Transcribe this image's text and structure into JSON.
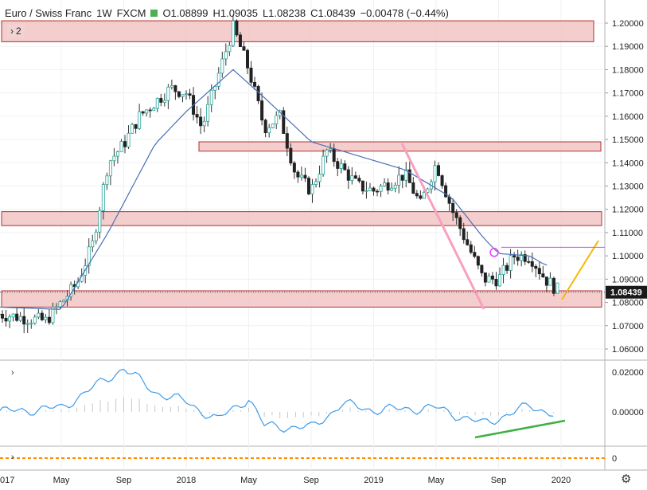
{
  "legend": {
    "symbol": "Euro / Swiss Franc",
    "interval": "1W",
    "exchange": "FXCM",
    "open": "O1.08899",
    "high": "H1.09035",
    "low": "L1.08238",
    "close": "C1.08439",
    "change": "−0.00478 (−0.44%)",
    "status_color": "#4caf50"
  },
  "badge_label": "2",
  "price_axis_labels": [
    "1.20000",
    "1.19000",
    "1.18000",
    "1.17000",
    "1.16000",
    "1.15000",
    "1.14000",
    "1.13000",
    "1.12000",
    "1.11000",
    "1.10000",
    "1.09000",
    "1.08000",
    "1.07000",
    "1.06000"
  ],
  "last_price_label": "1.08439",
  "osc_axis_labels": [
    "0.02000",
    "0.00000"
  ],
  "pane3_axis_label": "0",
  "time_labels": [
    "017",
    "May",
    "Sep",
    "2018",
    "May",
    "Sep",
    "2019",
    "May",
    "Sep",
    "2020"
  ],
  "colors": {
    "up": "#26a69a",
    "down": "#222222",
    "ma": "#4a6fb5",
    "zone_fill": "#f2c4c4",
    "zone_stroke": "#b03030",
    "trend_pink": "#f8a0c0",
    "yellow": "#f5b800",
    "magenta": "#e040fb",
    "osc": "#3d9be9",
    "green": "#3cb043",
    "orange": "#ff8c00"
  },
  "chart_data": {
    "type": "candlestick",
    "title": "Euro / Swiss Franc",
    "interval": "1W",
    "ylim": [
      1.056,
      1.203
    ],
    "x_range": [
      "2017-01",
      "2020-01"
    ],
    "keypoints_close": [
      {
        "date": "2017-01",
        "close": 1.075
      },
      {
        "date": "2017-04",
        "close": 1.072
      },
      {
        "date": "2017-06",
        "close": 1.088
      },
      {
        "date": "2017-07",
        "close": 1.105
      },
      {
        "date": "2017-08",
        "close": 1.14
      },
      {
        "date": "2017-09",
        "close": 1.148
      },
      {
        "date": "2017-10",
        "close": 1.16
      },
      {
        "date": "2017-12",
        "close": 1.172
      },
      {
        "date": "2018-01",
        "close": 1.17
      },
      {
        "date": "2018-02",
        "close": 1.155
      },
      {
        "date": "2018-04",
        "close": 1.198
      },
      {
        "date": "2018-05",
        "close": 1.18
      },
      {
        "date": "2018-06",
        "close": 1.155
      },
      {
        "date": "2018-07",
        "close": 1.16
      },
      {
        "date": "2018-08",
        "close": 1.135
      },
      {
        "date": "2018-09",
        "close": 1.128
      },
      {
        "date": "2018-10",
        "close": 1.145
      },
      {
        "date": "2018-12",
        "close": 1.13
      },
      {
        "date": "2019-01",
        "close": 1.128
      },
      {
        "date": "2019-03",
        "close": 1.135
      },
      {
        "date": "2019-04",
        "close": 1.122
      },
      {
        "date": "2019-05",
        "close": 1.14
      },
      {
        "date": "2019-06",
        "close": 1.12
      },
      {
        "date": "2019-07",
        "close": 1.105
      },
      {
        "date": "2019-08",
        "close": 1.09
      },
      {
        "date": "2019-09",
        "close": 1.09
      },
      {
        "date": "2019-10",
        "close": 1.1
      },
      {
        "date": "2019-11",
        "close": 1.1
      },
      {
        "date": "2019-12",
        "close": 1.09
      },
      {
        "date": "2020-01",
        "close": 1.084
      }
    ],
    "moving_average": [
      {
        "date": "2017-01",
        "value": 1.078
      },
      {
        "date": "2017-05",
        "value": 1.077
      },
      {
        "date": "2017-08",
        "value": 1.11
      },
      {
        "date": "2017-11",
        "value": 1.148
      },
      {
        "date": "2018-01",
        "value": 1.162
      },
      {
        "date": "2018-04",
        "value": 1.18
      },
      {
        "date": "2018-06",
        "value": 1.168
      },
      {
        "date": "2018-09",
        "value": 1.149
      },
      {
        "date": "2018-12",
        "value": 1.143
      },
      {
        "date": "2019-03",
        "value": 1.137
      },
      {
        "date": "2019-06",
        "value": 1.125
      },
      {
        "date": "2019-08",
        "value": 1.108
      },
      {
        "date": "2019-09",
        "value": 1.101
      },
      {
        "date": "2019-11",
        "value": 1.1
      },
      {
        "date": "2019-12",
        "value": 1.096
      }
    ],
    "zones": [
      {
        "from": 1.192,
        "to": 1.201,
        "x_from": "2017-01",
        "x_to": "2019-12"
      },
      {
        "from": 1.145,
        "to": 1.149,
        "x_from": "2018-01",
        "x_to": "2020-01"
      },
      {
        "from": 1.113,
        "to": 1.119,
        "x_from": "2017-01",
        "x_to": "2020-01"
      },
      {
        "from": 1.078,
        "to": 1.085,
        "x_from": "2017-01",
        "x_to": "2020-01"
      }
    ],
    "last_price": 1.08439,
    "oscillator": {
      "ylim": [
        -0.012,
        0.024
      ],
      "keypoints": [
        {
          "date": "2017-01",
          "value": 0.0
        },
        {
          "date": "2017-05",
          "value": 0.002
        },
        {
          "date": "2017-09",
          "value": 0.022
        },
        {
          "date": "2017-11",
          "value": 0.01
        },
        {
          "date": "2018-01",
          "value": 0.005
        },
        {
          "date": "2018-03",
          "value": -0.004
        },
        {
          "date": "2018-05",
          "value": 0.007
        },
        {
          "date": "2018-06",
          "value": -0.007
        },
        {
          "date": "2018-09",
          "value": -0.008
        },
        {
          "date": "2018-11",
          "value": 0.004
        },
        {
          "date": "2019-01",
          "value": 0.001
        },
        {
          "date": "2019-05",
          "value": 0.002
        },
        {
          "date": "2019-08",
          "value": -0.006
        },
        {
          "date": "2019-11",
          "value": 0.003
        },
        {
          "date": "2020-01",
          "value": -0.002
        }
      ]
    }
  }
}
